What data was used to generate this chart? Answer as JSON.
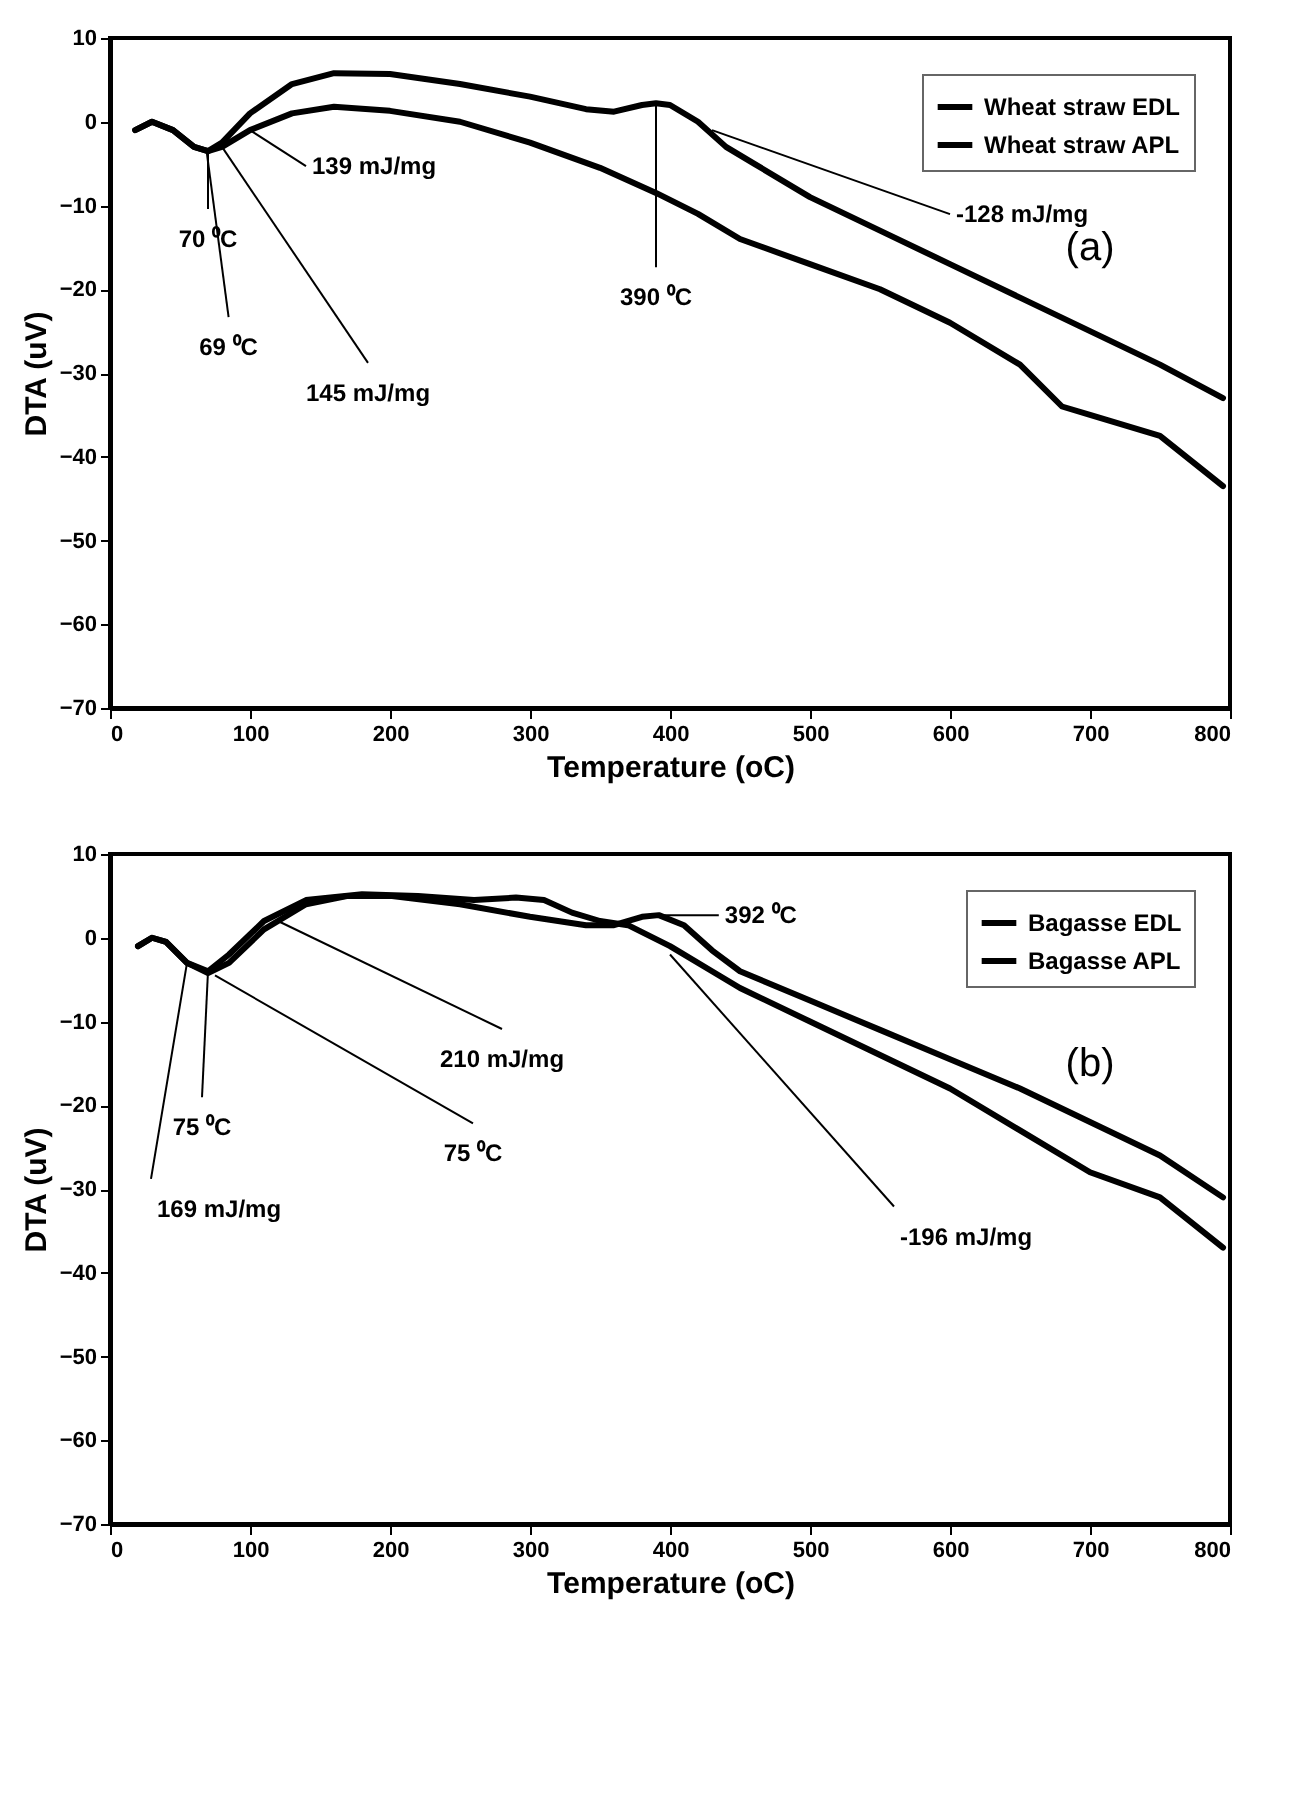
{
  "chart_data": [
    {
      "type": "line",
      "xlabel": "Temperature (oC)",
      "ylabel": "DTA (uV)",
      "xlim": [
        0,
        800
      ],
      "ylim": [
        -70,
        10
      ],
      "xticks": [
        0,
        100,
        200,
        300,
        400,
        500,
        600,
        700,
        800
      ],
      "yticks": [
        -70,
        -60,
        -50,
        -40,
        -30,
        -20,
        -10,
        0,
        10
      ],
      "legend": "top right",
      "series": [
        {
          "name": "Wheat straw EDL",
          "color": "#000000",
          "x": [
            18,
            30,
            45,
            60,
            70,
            80,
            100,
            130,
            160,
            200,
            250,
            300,
            340,
            360,
            380,
            390,
            400,
            420,
            440,
            460,
            500,
            550,
            600,
            650,
            700,
            750,
            795
          ],
          "values": [
            -1,
            0,
            -1,
            -3,
            -3.5,
            -2.5,
            1,
            4.5,
            5.8,
            5.7,
            4.5,
            3,
            1.5,
            1.2,
            2,
            2.2,
            2,
            0,
            -3,
            -5,
            -9,
            -13,
            -17,
            -21,
            -25,
            -29,
            -33
          ]
        },
        {
          "name": "Wheat straw APL",
          "color": "#000000",
          "x": [
            18,
            30,
            45,
            60,
            70,
            80,
            100,
            130,
            160,
            200,
            250,
            300,
            350,
            390,
            420,
            450,
            500,
            550,
            600,
            650,
            680,
            700,
            750,
            795
          ],
          "values": [
            -1,
            0,
            -1,
            -3,
            -3.5,
            -3,
            -1,
            1,
            1.8,
            1.3,
            0,
            -2.5,
            -5.5,
            -8.5,
            -11,
            -14,
            -17,
            -20,
            -24,
            -29,
            -34,
            -35,
            -37.5,
            -43.5
          ]
        }
      ],
      "annotations": [
        {
          "text": "139 mJ/mg",
          "x": 100,
          "y": -1
        },
        {
          "text": "-128 mJ/mg",
          "x": 430,
          "y": -1
        },
        {
          "text": "70 ⁰C",
          "x": 70,
          "y": -3.5
        },
        {
          "text": "390 ⁰C",
          "x": 390,
          "y": 2.2
        },
        {
          "text": "69 ⁰C",
          "x": 69,
          "y": -3.5
        },
        {
          "text": "145 mJ/mg",
          "x": 80,
          "y": -3
        },
        "(a)"
      ]
    },
    {
      "type": "line",
      "xlabel": "Temperature (oC)",
      "ylabel": "DTA (uV)",
      "xlim": [
        0,
        800
      ],
      "ylim": [
        -70,
        10
      ],
      "xticks": [
        0,
        100,
        200,
        300,
        400,
        500,
        600,
        700,
        800
      ],
      "yticks": [
        -70,
        -60,
        -50,
        -40,
        -30,
        -20,
        -10,
        0,
        10
      ],
      "legend": "top right",
      "series": [
        {
          "name": "Bagasse EDL",
          "color": "#000000",
          "x": [
            20,
            30,
            40,
            55,
            70,
            85,
            110,
            140,
            170,
            200,
            250,
            300,
            340,
            360,
            380,
            392,
            410,
            430,
            450,
            500,
            550,
            600,
            650,
            700,
            750,
            795
          ],
          "values": [
            -1,
            0,
            -0.5,
            -3,
            -4.2,
            -3,
            1,
            4,
            5,
            5,
            4,
            2.5,
            1.5,
            1.5,
            2.5,
            2.7,
            1.5,
            -1.5,
            -4,
            -7.5,
            -11,
            -14.5,
            -18,
            -22,
            -26,
            -31
          ]
        },
        {
          "name": "Bagasse APL",
          "color": "#000000",
          "x": [
            20,
            30,
            40,
            55,
            70,
            85,
            110,
            140,
            180,
            220,
            260,
            290,
            310,
            330,
            350,
            370,
            400,
            430,
            450,
            500,
            550,
            600,
            650,
            700,
            750,
            795
          ],
          "values": [
            -1,
            0,
            -0.5,
            -3,
            -4,
            -2,
            2,
            4.5,
            5.2,
            5,
            4.5,
            4.8,
            4.5,
            3,
            2,
            1.5,
            -1,
            -4,
            -6,
            -10,
            -14,
            -18,
            -23,
            -28,
            -31,
            -37
          ]
        }
      ],
      "annotations": [
        {
          "text": "392 ⁰C",
          "x": 392,
          "y": 2.7
        },
        {
          "text": "210 mJ/mg",
          "x": 120,
          "y": 2
        },
        {
          "text": "75 ⁰C",
          "x": 70,
          "y": -4
        },
        {
          "text": "75 ⁰C",
          "x": 75,
          "y": -4.5
        },
        {
          "text": "169 mJ/mg",
          "x": 55,
          "y": -3
        },
        {
          "text": "-196 mJ/mg",
          "x": 400,
          "y": -2
        },
        "(b)"
      ]
    }
  ]
}
